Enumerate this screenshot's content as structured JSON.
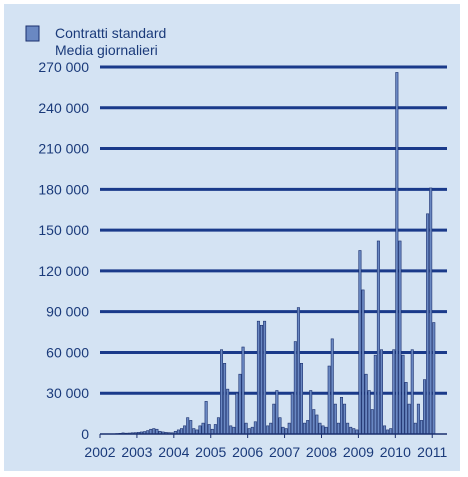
{
  "chart_data": {
    "type": "bar",
    "legend": {
      "placement": "top-left",
      "entries": [
        "Contratti standard",
        "Media giornalieri"
      ]
    },
    "colors": {
      "background": "#d4e3f3",
      "bar_fill": "#6a88c2",
      "bar_stroke": "#1a2f6e",
      "grid": "#1a3a8a",
      "axis": "#1a2f6e",
      "text": "#1a3a7a"
    },
    "ylim": [
      0,
      270000
    ],
    "yticks": [
      0,
      30000,
      60000,
      90000,
      120000,
      150000,
      180000,
      210000,
      240000,
      270000
    ],
    "ytick_labels": [
      "0",
      "30 000",
      "60 000",
      "90 000",
      "120 000",
      "150 000",
      "180 000",
      "210 000",
      "240 000",
      "270 000"
    ],
    "xlim": [
      2002,
      2011.4
    ],
    "xtick_labels": [
      "2002",
      "2003",
      "2004",
      "2005",
      "2006",
      "2007",
      "2008",
      "2009",
      "2010",
      "2011"
    ],
    "grid": true,
    "x_start_year": 2002,
    "months_per_year": 12,
    "values": [
      0,
      0,
      0,
      0,
      0,
      300,
      500,
      800,
      600,
      700,
      900,
      1000,
      1200,
      1500,
      1800,
      2500,
      3500,
      4000,
      3500,
      2000,
      1500,
      1200,
      1000,
      900,
      2000,
      3000,
      4000,
      6000,
      12000,
      10000,
      4000,
      3000,
      6000,
      8000,
      24000,
      7000,
      3500,
      7000,
      12000,
      62000,
      52000,
      33000,
      6000,
      5000,
      30000,
      44000,
      64000,
      8000,
      4000,
      5000,
      9000,
      83000,
      80000,
      83000,
      6000,
      8000,
      22000,
      32000,
      12000,
      5000,
      4000,
      8000,
      30000,
      68000,
      93000,
      52000,
      8000,
      10000,
      32000,
      18000,
      14000,
      8000,
      6000,
      5000,
      50000,
      70000,
      22000,
      8000,
      27000,
      22000,
      8000,
      5000,
      4000,
      3000,
      135000,
      106000,
      44000,
      32000,
      18000,
      58000,
      142000,
      62000,
      6000,
      3000,
      4000,
      62000,
      266000,
      142000,
      58000,
      38000,
      22000,
      62000,
      8000,
      22000,
      10000,
      40000,
      162000,
      181000,
      82000
    ]
  }
}
